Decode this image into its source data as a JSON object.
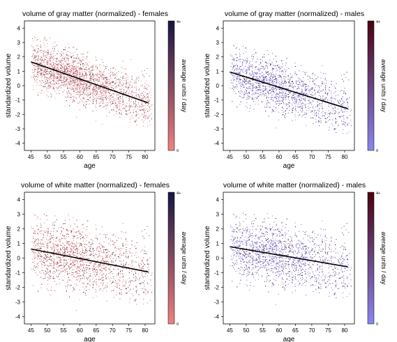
{
  "chart_data": [
    {
      "type": "scatter",
      "title": "volume of gray matter (normalized) - females",
      "xlabel": "age",
      "ylabel": "standardized volume",
      "xlim": [
        43,
        83
      ],
      "ylim": [
        -4.5,
        4.5
      ],
      "xticks": [
        "45",
        "50",
        "55",
        "60",
        "65",
        "70",
        "75",
        "80"
      ],
      "yticks": [
        "4",
        "3",
        "2",
        "1",
        "0",
        "-1",
        "-2",
        "-3",
        "-4"
      ],
      "fit_line": {
        "x": [
          45,
          81
        ],
        "y": [
          1.65,
          -1.2
        ]
      },
      "scatter": {
        "x_range": [
          45,
          82
        ],
        "spread_sd": 0.8,
        "approx_points": 5000
      },
      "colorbar": {
        "label": "average units / day",
        "min_label": "0",
        "max_label": "4+",
        "color_low": "#f08080",
        "color_high": "#151540"
      }
    },
    {
      "type": "scatter",
      "title": "volume of gray matter (normalized) - males",
      "xlabel": "age",
      "ylabel": "standardized volume",
      "xlim": [
        43,
        83
      ],
      "ylim": [
        -4.5,
        4.5
      ],
      "xticks": [
        "45",
        "50",
        "55",
        "60",
        "65",
        "70",
        "75",
        "80"
      ],
      "yticks": [
        "4",
        "3",
        "2",
        "1",
        "0",
        "-1",
        "-2",
        "-3",
        "-4"
      ],
      "fit_line": {
        "x": [
          45,
          81
        ],
        "y": [
          0.95,
          -1.6
        ]
      },
      "scatter": {
        "x_range": [
          45,
          82
        ],
        "spread_sd": 0.85,
        "approx_points": 5000
      },
      "colorbar": {
        "label": "average units / day",
        "min_label": "0",
        "max_label": "4+",
        "color_low": "#8a86ee",
        "color_high": "#4a0010"
      }
    },
    {
      "type": "scatter",
      "title": "volume of white matter (normalized) - females",
      "xlabel": "age",
      "ylabel": "standardized volume",
      "xlim": [
        43,
        83
      ],
      "ylim": [
        -4.5,
        4.5
      ],
      "xticks": [
        "45",
        "50",
        "55",
        "60",
        "65",
        "70",
        "75",
        "80"
      ],
      "yticks": [
        "4",
        "3",
        "2",
        "1",
        "0",
        "-1",
        "-2",
        "-3",
        "-4"
      ],
      "fit_line": {
        "x": [
          45,
          81
        ],
        "y": [
          0.62,
          -0.95
        ]
      },
      "scatter": {
        "x_range": [
          45,
          82
        ],
        "spread_sd": 1.05,
        "approx_points": 5000
      },
      "colorbar": {
        "label": "average units / day",
        "min_label": "0",
        "max_label": "4+",
        "color_low": "#f08080",
        "color_high": "#151540"
      }
    },
    {
      "type": "scatter",
      "title": "volume of white matter (normalized) - males",
      "xlabel": "age",
      "ylabel": "standardized volume",
      "xlim": [
        43,
        83
      ],
      "ylim": [
        -4.5,
        4.5
      ],
      "xticks": [
        "45",
        "50",
        "55",
        "60",
        "65",
        "70",
        "75",
        "80"
      ],
      "yticks": [
        "4",
        "3",
        "2",
        "1",
        "0",
        "-1",
        "-2",
        "-3",
        "-4"
      ],
      "fit_line": {
        "x": [
          45,
          81
        ],
        "y": [
          0.78,
          -0.6
        ]
      },
      "scatter": {
        "x_range": [
          45,
          82
        ],
        "spread_sd": 1.0,
        "approx_points": 5000
      },
      "colorbar": {
        "label": "average units / day",
        "min_label": "0",
        "max_label": "4+",
        "color_low": "#8a86ee",
        "color_high": "#4a0010"
      }
    }
  ]
}
